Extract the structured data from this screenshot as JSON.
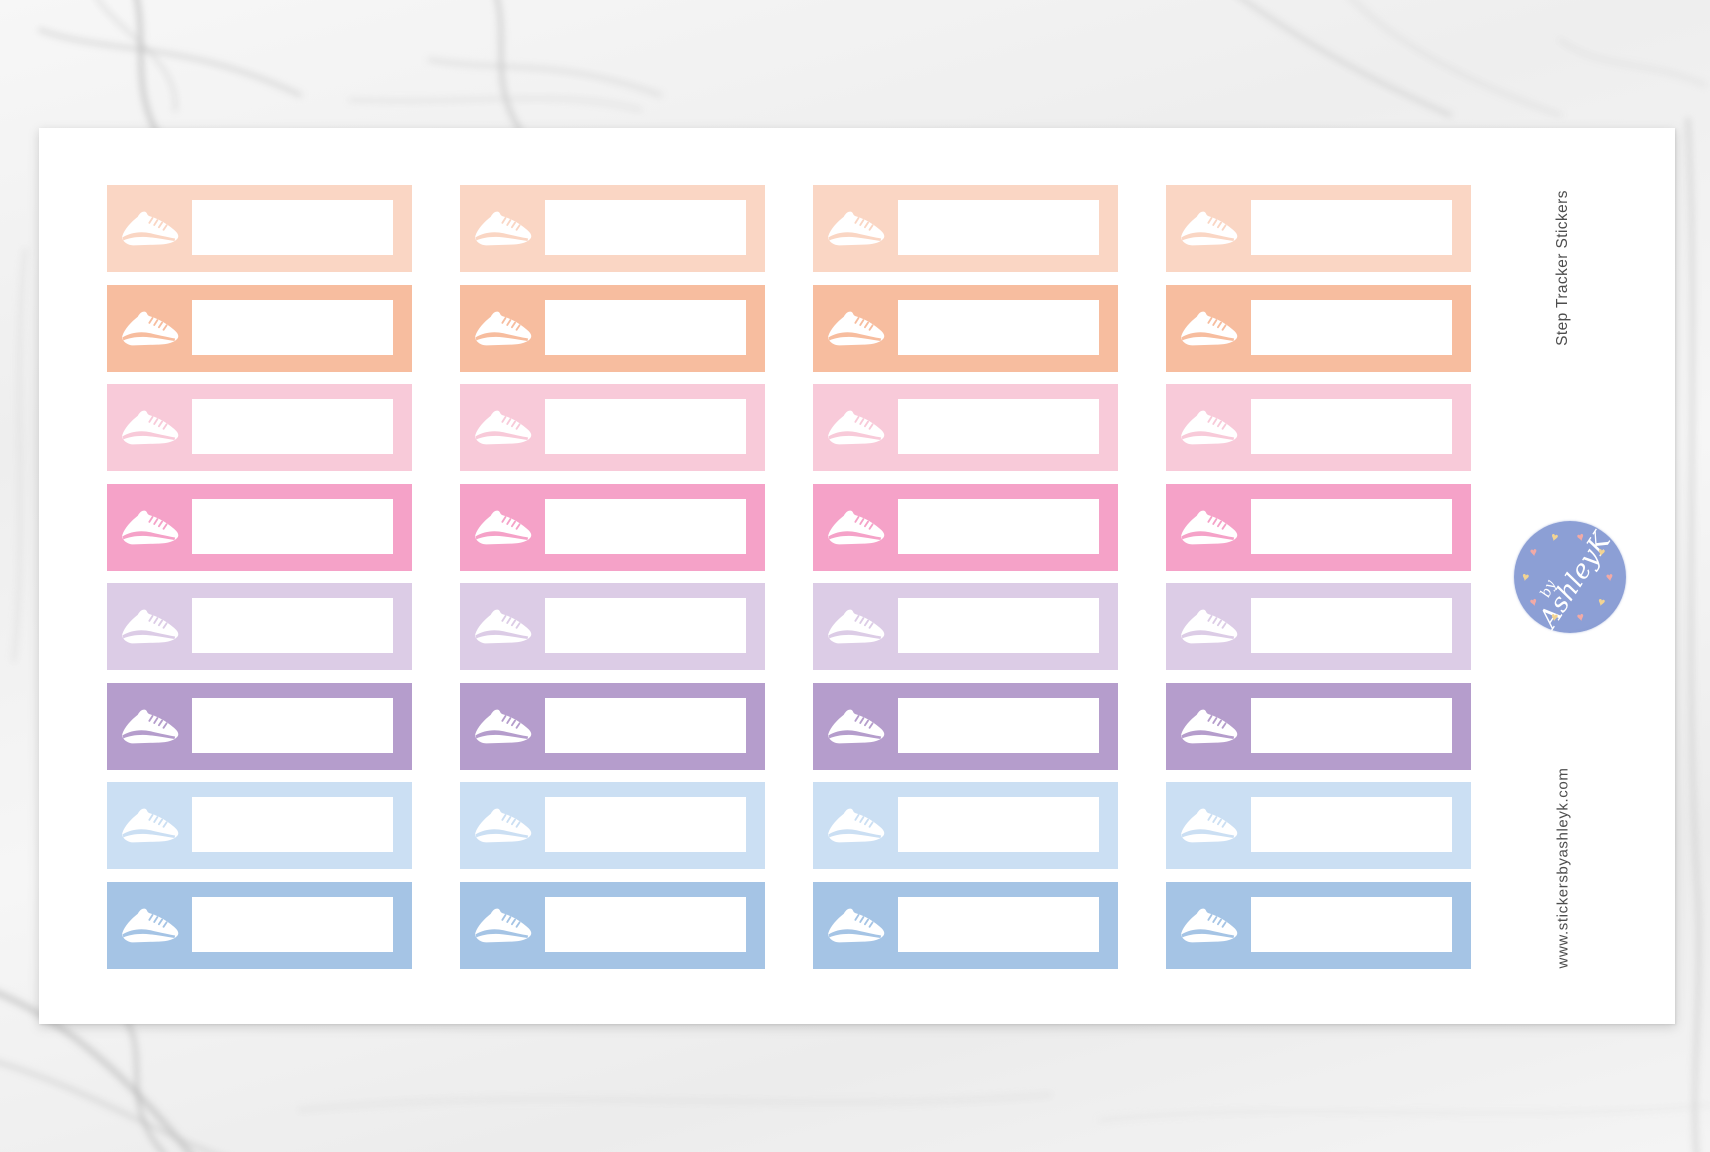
{
  "annotations": {
    "title": "Step Tracker Stickers",
    "website": "www.stickersbyashleyk.com",
    "text_color": "#4d4d4d"
  },
  "logo": {
    "by_label": "by",
    "name_label": "AshleyK",
    "circle_color": "#8c9fd5",
    "text_color": "#ffffff",
    "heart_glyph": "♥",
    "heart_colors": [
      "#f2aaa6",
      "#f3d492"
    ]
  },
  "sticker_sheet": {
    "columns": 4,
    "sheet_color": "#ffffff",
    "icon": "sneaker-icon",
    "write_box_color": "#ffffff",
    "rows": [
      {
        "name": "pastel-peach",
        "color": "#fad6c4"
      },
      {
        "name": "peach",
        "color": "#f7bd9f"
      },
      {
        "name": "pastel-pink",
        "color": "#f8cad9"
      },
      {
        "name": "pink",
        "color": "#f5a2c8"
      },
      {
        "name": "pastel-lilac",
        "color": "#dccce6"
      },
      {
        "name": "lilac",
        "color": "#b59dcc"
      },
      {
        "name": "pastel-blue",
        "color": "#cbdff3"
      },
      {
        "name": "blue",
        "color": "#a5c4e5"
      }
    ]
  }
}
